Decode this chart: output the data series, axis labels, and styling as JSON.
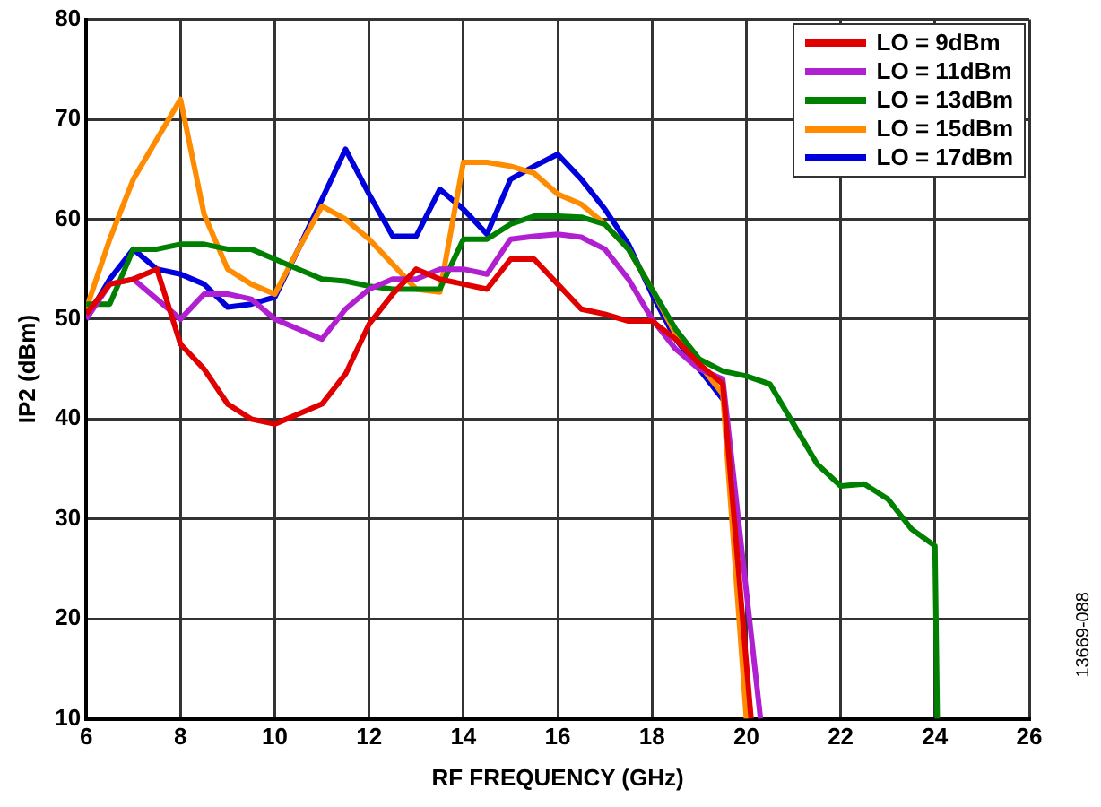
{
  "chart_data": {
    "type": "line",
    "xlabel": "RF FREQUENCY (GHz)",
    "ylabel": "IP2 (dBm)",
    "xlim": [
      6,
      26
    ],
    "ylim": [
      10,
      80
    ],
    "xticks": [
      6,
      8,
      10,
      12,
      14,
      16,
      18,
      20,
      22,
      24,
      26
    ],
    "yticks": [
      10,
      20,
      30,
      40,
      50,
      60,
      70,
      80
    ],
    "grid": true,
    "legend": "top right",
    "marker": "none",
    "line_style": "solid",
    "annotations": [
      "13669-088"
    ],
    "series": [
      {
        "name": "LO = 9dBm",
        "color": "#e00000",
        "x": [
          6,
          6.5,
          7,
          7.5,
          8,
          8.5,
          9,
          9.5,
          10,
          10.5,
          11,
          11.5,
          12,
          12.5,
          13,
          13.5,
          14,
          14.5,
          15,
          15.5,
          16,
          16.5,
          17,
          17.5,
          18,
          18.5,
          19,
          19.5,
          20.1
        ],
        "values": [
          50.5,
          53.5,
          54,
          55,
          47.5,
          45,
          41.5,
          40,
          39.5,
          40.5,
          41.5,
          44.5,
          49.5,
          52.5,
          55,
          54,
          53.5,
          53,
          56,
          56,
          53.5,
          51,
          50.5,
          49.8,
          49.8,
          48,
          45.5,
          43.5,
          10
        ]
      },
      {
        "name": "LO = 11dBm",
        "color": "#b020d0",
        "x": [
          6,
          6.5,
          7,
          7.5,
          8,
          8.5,
          9,
          9.5,
          10,
          10.5,
          11,
          11.5,
          12,
          12.5,
          13,
          13.5,
          14,
          14.5,
          15,
          15.5,
          16,
          16.5,
          17,
          17.5,
          18,
          18.5,
          19,
          19.5,
          20.3
        ],
        "values": [
          50,
          53.5,
          54,
          52,
          50,
          52.5,
          52.5,
          52,
          50,
          49,
          48,
          51,
          53,
          54,
          54,
          55,
          55,
          54.5,
          58,
          58.3,
          58.5,
          58.2,
          57,
          54,
          50,
          47,
          45,
          44,
          10
        ]
      },
      {
        "name": "LO = 13dBm",
        "color": "#008000",
        "x": [
          6,
          6.5,
          7,
          7.5,
          8,
          8.5,
          9,
          9.5,
          10,
          10.5,
          11,
          11.5,
          12,
          12.5,
          13,
          13.5,
          14,
          14.5,
          15,
          15.5,
          16,
          16.5,
          17,
          17.5,
          18,
          18.5,
          19,
          19.5,
          20,
          20.5,
          21,
          21.5,
          22,
          22.5,
          23,
          23.5,
          24,
          24.05
        ],
        "values": [
          51.5,
          51.5,
          57,
          57,
          57.5,
          57.5,
          57,
          57,
          56,
          55,
          54,
          53.8,
          53.3,
          53,
          53,
          53,
          58,
          58,
          59.5,
          60.3,
          60.3,
          60.2,
          59.5,
          57,
          53,
          49,
          46,
          44.8,
          44.3,
          43.5,
          39.5,
          35.5,
          33.3,
          33.5,
          32,
          29,
          27.3,
          10
        ]
      },
      {
        "name": "LO = 15dBm",
        "color": "#ff8c00",
        "x": [
          6,
          6.5,
          7,
          7.5,
          8,
          8.5,
          9,
          9.5,
          10,
          10.5,
          11,
          11.5,
          12,
          12.5,
          13,
          13.5,
          14,
          14.5,
          15,
          15.5,
          16,
          16.5,
          17,
          17.5,
          18,
          18.5,
          19,
          19.5,
          20
        ],
        "values": [
          51,
          58,
          64,
          68,
          72,
          60.5,
          55,
          53.5,
          52.5,
          57,
          61.3,
          60,
          58,
          55.5,
          53,
          52.7,
          65.7,
          65.7,
          65.3,
          64.6,
          62.5,
          61.5,
          59.5,
          57,
          53,
          48.5,
          45.5,
          42.5,
          10
        ]
      },
      {
        "name": "LO = 17dBm",
        "color": "#0000dd",
        "x": [
          6,
          6.5,
          7,
          7.5,
          8,
          8.5,
          9,
          9.5,
          10,
          10.5,
          11,
          11.5,
          12,
          12.5,
          13,
          13.5,
          14,
          14.5,
          15,
          15.5,
          16,
          16.5,
          17,
          17.5,
          18,
          18.5,
          19,
          19.5
        ],
        "values": [
          50,
          54,
          57,
          55,
          54.5,
          53.5,
          51.2,
          51.5,
          52.2,
          57,
          62,
          67,
          62.5,
          58.3,
          58.3,
          63,
          61,
          58.5,
          64,
          65.3,
          66.5,
          64,
          61,
          57.5,
          52.5,
          48,
          45,
          42
        ]
      }
    ]
  }
}
